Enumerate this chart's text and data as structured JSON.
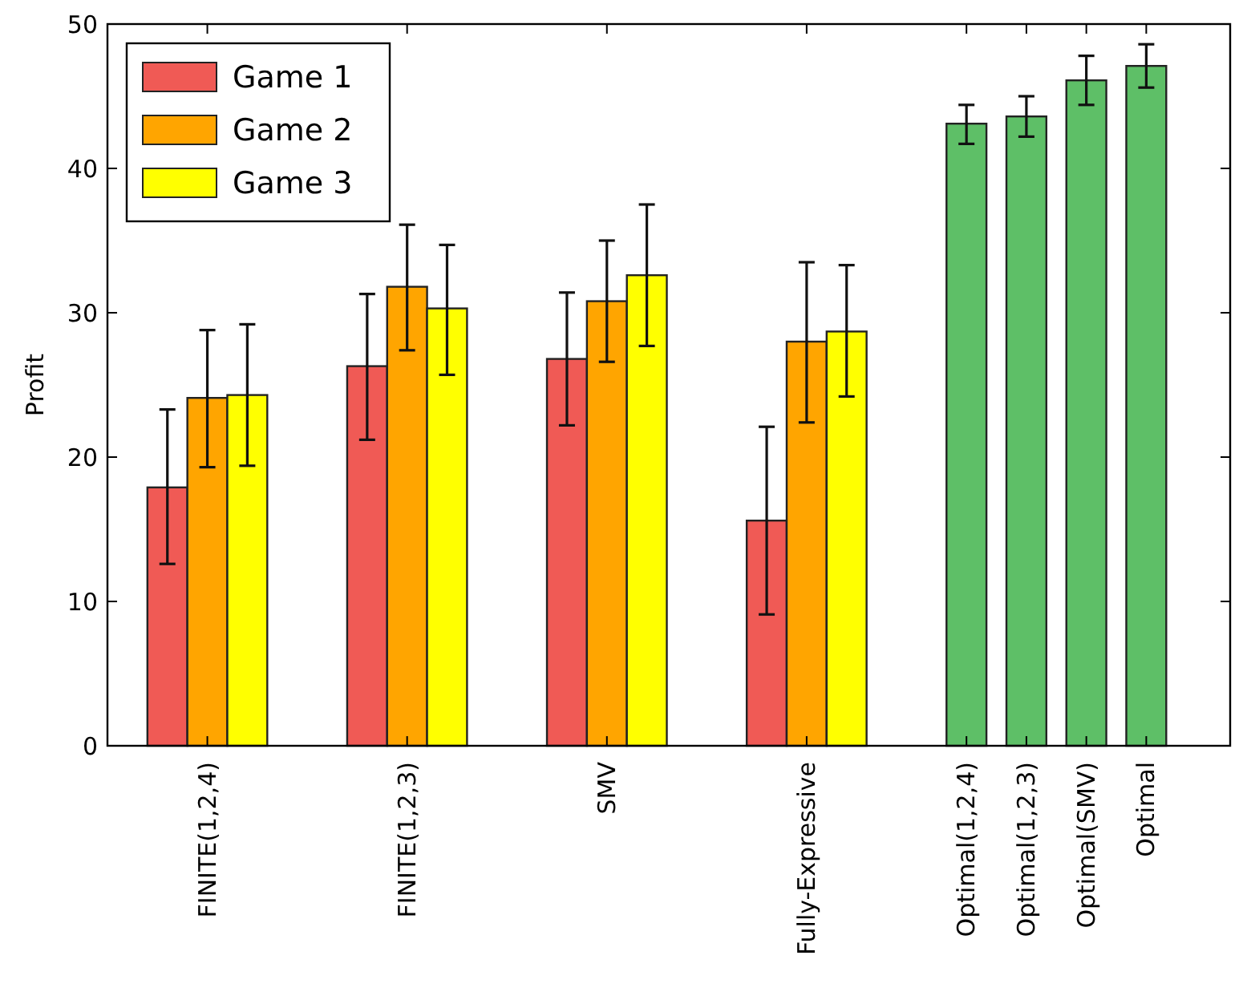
{
  "chart_data": {
    "type": "bar",
    "ylabel": "Profit",
    "categories": [
      "FINITE(1,2,4)",
      "FINITE(1,2,3)",
      "SMV",
      "Fully-Expressive",
      "Optimal(1,2,4)",
      "Optimal(1,2,3)",
      "Optimal(SMV)",
      "Optimal"
    ],
    "series": [
      {
        "name": "Game 1",
        "color": "#f05a55",
        "values": [
          17.9,
          26.3,
          26.8,
          15.6,
          null,
          null,
          null,
          null
        ],
        "errors": [
          [
            12.6,
            23.3
          ],
          [
            21.2,
            31.3
          ],
          [
            22.2,
            31.4
          ],
          [
            9.1,
            22.1
          ],
          null,
          null,
          null,
          null
        ]
      },
      {
        "name": "Game 2",
        "color": "#ffa500",
        "values": [
          24.1,
          31.8,
          30.8,
          28.0,
          null,
          null,
          null,
          null
        ],
        "errors": [
          [
            19.3,
            28.8
          ],
          [
            27.4,
            36.1
          ],
          [
            26.6,
            35.0
          ],
          [
            22.4,
            33.5
          ],
          null,
          null,
          null,
          null
        ]
      },
      {
        "name": "Game 3",
        "color": "#ffff00",
        "values": [
          24.3,
          30.3,
          32.6,
          28.7,
          null,
          null,
          null,
          null
        ],
        "errors": [
          [
            19.4,
            29.2
          ],
          [
            25.7,
            34.7
          ],
          [
            27.7,
            37.5
          ],
          [
            24.2,
            33.3
          ],
          null,
          null,
          null,
          null
        ]
      },
      {
        "color": "#5ebf67",
        "values": [
          null,
          null,
          null,
          null,
          43.1,
          43.6,
          46.1,
          47.1
        ],
        "errors": [
          null,
          null,
          null,
          null,
          [
            41.7,
            44.4
          ],
          [
            42.2,
            45.0
          ],
          [
            44.4,
            47.8
          ],
          [
            45.6,
            48.6
          ]
        ]
      }
    ],
    "ylim": [
      0,
      50
    ],
    "yticks": [
      0,
      10,
      20,
      30,
      40,
      50
    ],
    "grid": false,
    "legend": "top left"
  }
}
